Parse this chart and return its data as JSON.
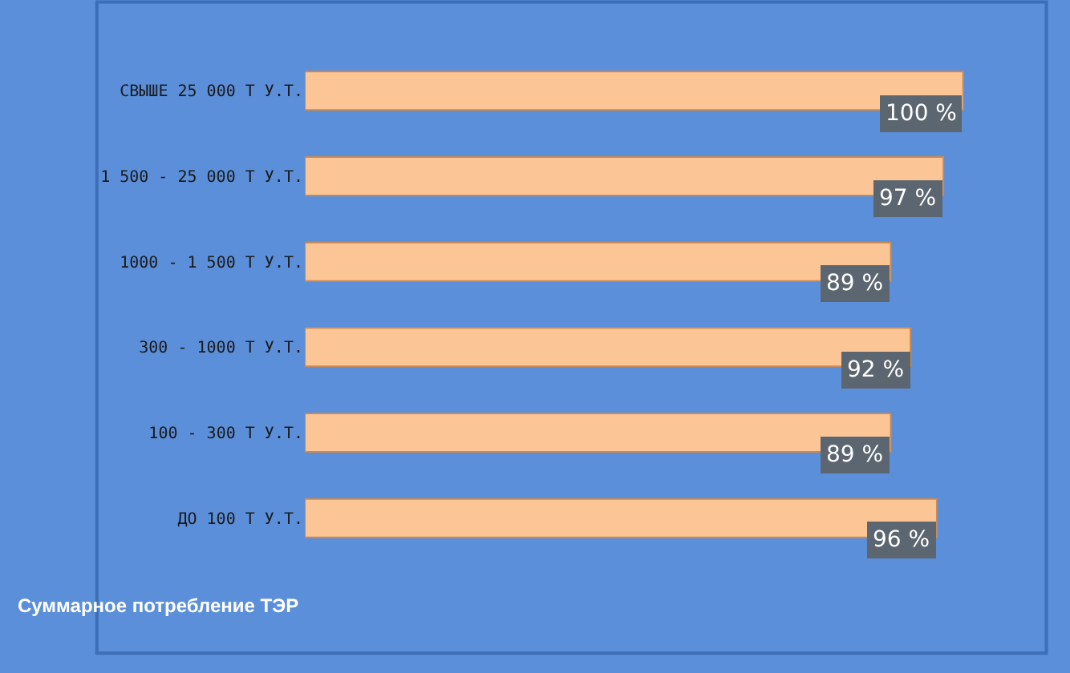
{
  "chart_data": {
    "type": "bar",
    "orientation": "horizontal",
    "categories": [
      "СВЫШЕ 25 000 Т У.Т.",
      "1 500 - 25 000 Т У.Т.",
      "1000 - 1 500 Т У.Т.",
      "300 - 1000 Т У.Т.",
      "100 - 300 Т У.Т.",
      "ДО 100 Т У.Т."
    ],
    "values": [
      100,
      97,
      89,
      92,
      89,
      96
    ],
    "value_labels": [
      "100 %",
      "97 %",
      "89 %",
      "92 %",
      "89 %",
      "96 %"
    ],
    "color": "#fbc596",
    "annotations": [
      "Суммарное потребление ТЭР"
    ],
    "grid": false,
    "legend": false
  }
}
